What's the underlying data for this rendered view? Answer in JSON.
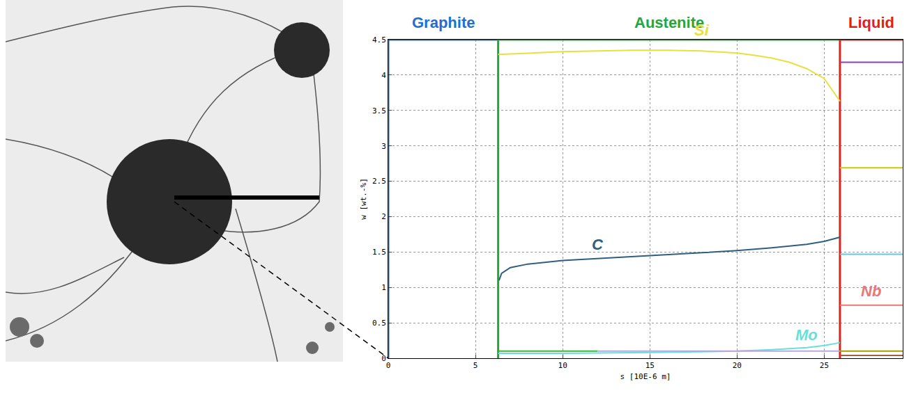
{
  "chart_data": {
    "type": "line",
    "xlabel": "s [10E-6 m]",
    "ylabel": "w [wt.-%]",
    "xlim": [
      0,
      29.5
    ],
    "xticks": [
      0,
      5,
      10,
      15,
      20,
      25
    ],
    "ylim": [
      0,
      4.5
    ],
    "yticks": [
      0,
      0.5,
      1,
      1.5,
      2,
      2.5,
      3,
      3.5,
      4,
      4.5
    ],
    "grid": true,
    "regions": [
      {
        "name": "Graphite",
        "color": "#1f6fd0",
        "x0": 0,
        "x1": 6.3
      },
      {
        "name": "Austenite",
        "color": "#22a83a",
        "x0": 6.3,
        "x1": 25.9
      },
      {
        "name": "Liquid",
        "color": "#e0201b",
        "x0": 25.9,
        "x1": 29.5
      }
    ],
    "series": [
      {
        "name": "Si",
        "color": "#e8e040",
        "x": [
          6.3,
          8,
          10,
          12,
          14,
          16,
          18,
          20,
          21,
          22,
          23,
          24,
          25,
          25.9
        ],
        "values": [
          4.29,
          4.31,
          4.33,
          4.34,
          4.35,
          4.35,
          4.34,
          4.31,
          4.28,
          4.24,
          4.18,
          4.09,
          3.95,
          3.63
        ]
      },
      {
        "color": "#c8c800",
        "x": [
          25.9,
          29.5
        ],
        "values": [
          2.69,
          2.69
        ]
      },
      {
        "name": "C",
        "color": "#2e5f7f",
        "x": [
          6.35,
          6.5,
          7,
          8,
          10,
          12,
          15,
          18,
          20,
          22,
          24,
          25,
          25.9
        ],
        "values": [
          1.1,
          1.2,
          1.28,
          1.33,
          1.38,
          1.41,
          1.45,
          1.49,
          1.52,
          1.56,
          1.61,
          1.65,
          1.71
        ]
      },
      {
        "color": "#8a3fc0",
        "x": [
          25.9,
          29.5
        ],
        "values": [
          4.18,
          4.18
        ]
      },
      {
        "name": "Mo",
        "color": "#66e0d8",
        "x": [
          6.3,
          10,
          15,
          18,
          20,
          22,
          24,
          25,
          25.9
        ],
        "values": [
          0.07,
          0.07,
          0.08,
          0.09,
          0.1,
          0.12,
          0.15,
          0.18,
          0.22
        ]
      },
      {
        "color": "#5fc8e8",
        "x": [
          25.9,
          29.5
        ],
        "values": [
          1.47,
          1.47
        ]
      },
      {
        "color": "#3cb43c",
        "x": [
          6.3,
          12
        ],
        "values": [
          0.1,
          0.1
        ]
      },
      {
        "color": "#b8a8e0",
        "x": [
          12,
          25.9
        ],
        "values": [
          0.1,
          0.1
        ]
      },
      {
        "name": "Nb",
        "color": "#e87878",
        "x": [
          25.9,
          29.5
        ],
        "values": [
          0.75,
          0.75
        ]
      },
      {
        "color": "#a0a000",
        "x": [
          25.9,
          29.5
        ],
        "values": [
          0.1,
          0.1
        ]
      },
      {
        "color": "#a06040",
        "x": [
          25.9,
          29.5
        ],
        "values": [
          0.04,
          0.04
        ]
      }
    ]
  }
}
